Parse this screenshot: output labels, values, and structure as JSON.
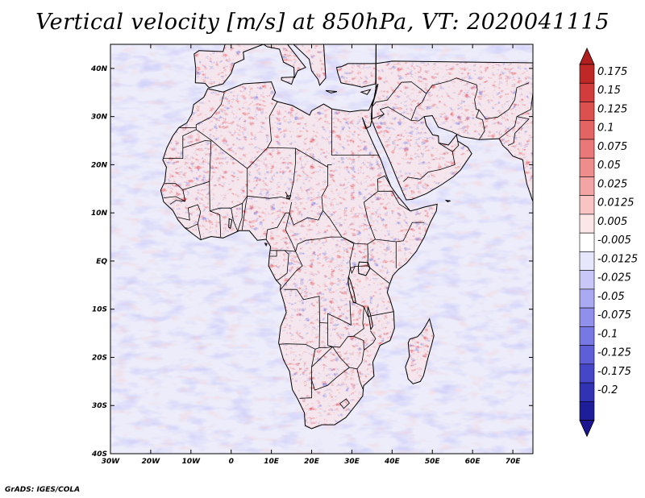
{
  "title": "Vertical velocity [m/s] at 850hPa, VT: 2020041115",
  "credit": "GrADS: IGES/COLA",
  "map": {
    "lat_labels": [
      "40N",
      "30N",
      "20N",
      "10N",
      "EQ",
      "10S",
      "20S",
      "30S",
      "40S"
    ],
    "lat_values": [
      40,
      30,
      20,
      10,
      0,
      -10,
      -20,
      -30,
      -40
    ],
    "lon_labels": [
      "30W",
      "20W",
      "10W",
      "0",
      "10E",
      "20E",
      "30E",
      "40E",
      "50E",
      "60E",
      "70E"
    ],
    "lon_values": [
      -30,
      -20,
      -10,
      0,
      10,
      20,
      30,
      40,
      50,
      60,
      70
    ],
    "lon_range": [
      -30,
      75
    ],
    "lat_range": [
      -40,
      45
    ]
  },
  "colorbar": {
    "labels": [
      "0.175",
      "0.15",
      "0.125",
      "0.1",
      "0.075",
      "0.05",
      "0.025",
      "0.0125",
      "0.005",
      "-0.005",
      "-0.0125",
      "-0.025",
      "-0.05",
      "-0.075",
      "-0.1",
      "-0.125",
      "-0.175",
      "-0.2"
    ],
    "colors": [
      "#c02828",
      "#d23c3c",
      "#dc5050",
      "#e46464",
      "#ea7878",
      "#ef8c8c",
      "#f3a4a4",
      "#f8c4c4",
      "#fde6e6",
      "#ffffff",
      "#e6e6fd",
      "#c8c8f8",
      "#aaaaf2",
      "#9090ec",
      "#7878e4",
      "#5e5ed8",
      "#4646c8",
      "#3232b4",
      "#1e1e9a"
    ],
    "cap_top_color": "#b01e1e",
    "cap_bottom_color": "#1a1490"
  },
  "colors": {
    "ocean_base": "#ececfa",
    "land_base": "#f4e6ec",
    "border": "#000000"
  }
}
